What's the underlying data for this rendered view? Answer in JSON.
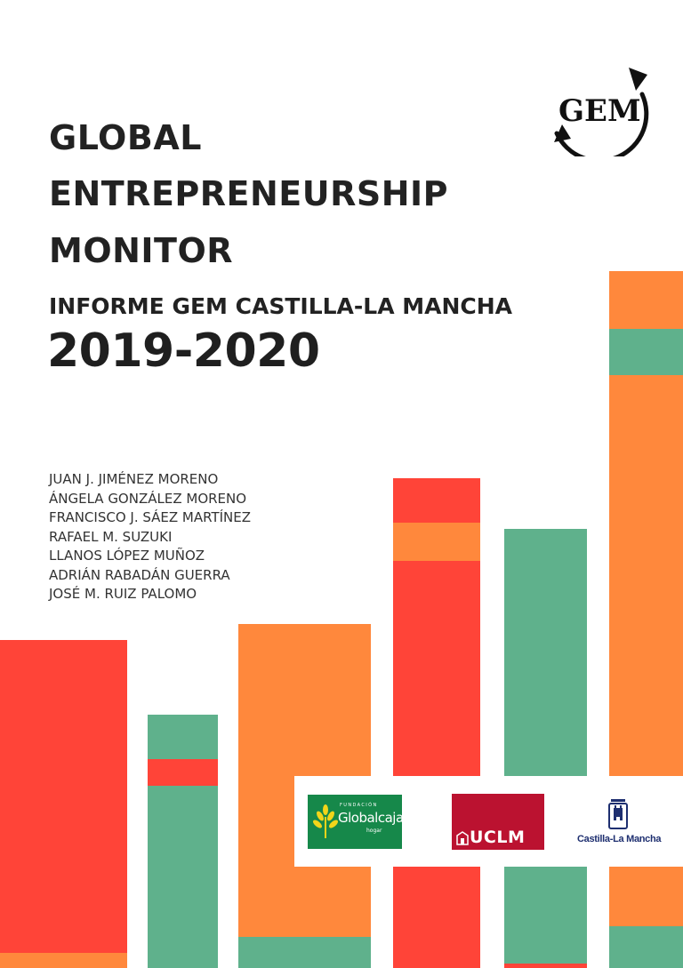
{
  "header": {
    "title_lines": [
      "GLOBAL",
      "ENTREPRENEURSHIP",
      "MONITOR"
    ],
    "subtitle": "INFORME GEM CASTILLA-LA MANCHA",
    "year": "2019-2020",
    "logo_text": "GEM"
  },
  "authors": [
    "JUAN J. JIMÉNEZ MORENO",
    "ÁNGELA GONZÁLEZ MORENO",
    "FRANCISCO J. SÁEZ MARTÍNEZ",
    "RAFAEL M. SUZUKI",
    "LLANOS LÓPEZ MUÑOZ",
    "ADRIÁN RABADÁN GUERRA",
    "JOSÉ M. RUIZ PALOMO"
  ],
  "sponsors": {
    "globalcaja": {
      "foundation": "FUNDACIÓN",
      "name": "Globalcaja",
      "sub": "hogar"
    },
    "uclm": {
      "name": "UCLM"
    },
    "jccm": {
      "name": "Castilla-La Mancha"
    }
  },
  "colors": {
    "red": "#ff4438",
    "orange": "#ff883c",
    "green": "#5fb18c",
    "text": "#222222"
  }
}
